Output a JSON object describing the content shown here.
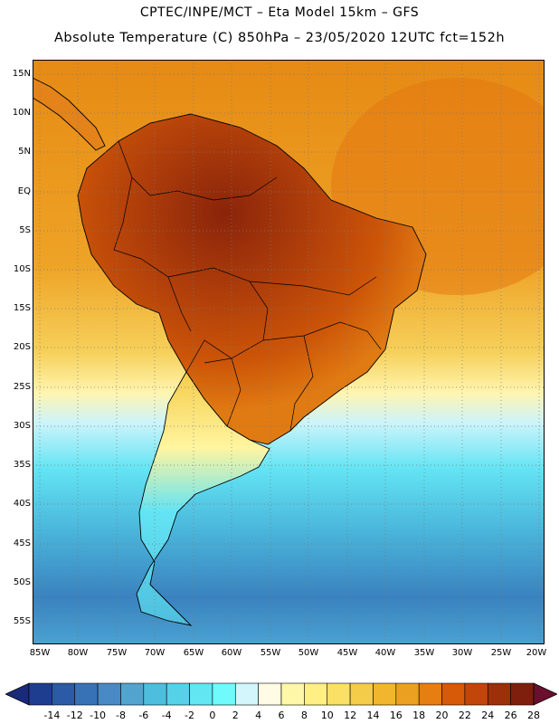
{
  "header": {
    "line1": "CPTEC/INPE/MCT –  Eta Model 15km – GFS",
    "line2": "Absolute Temperature (C) 850hPa – 23/05/2020 12UTC fct=152h"
  },
  "axes": {
    "lat_labels": [
      "15N",
      "10N",
      "5N",
      "EQ",
      "5S",
      "10S",
      "15S",
      "20S",
      "25S",
      "30S",
      "35S",
      "40S",
      "45S",
      "50S",
      "55S"
    ],
    "lon_labels": [
      "85W",
      "80W",
      "75W",
      "70W",
      "65W",
      "60W",
      "55W",
      "50W",
      "45W",
      "40W",
      "35W",
      "30W",
      "25W",
      "20W"
    ]
  },
  "legend": {
    "labels": [
      "-14",
      "-12",
      "-10",
      "-8",
      "-6",
      "-4",
      "-2",
      "0",
      "2",
      "4",
      "6",
      "8",
      "10",
      "12",
      "14",
      "16",
      "18",
      "20",
      "22",
      "24",
      "26",
      "28"
    ],
    "colors": [
      "#1f3d8f",
      "#2c5aa6",
      "#3872b6",
      "#4a8ac4",
      "#52a4cf",
      "#4fbede",
      "#55d2e8",
      "#62e6f2",
      "#70fafc",
      "#d2f6fb",
      "#fffbe4",
      "#fff7a8",
      "#ffef84",
      "#fbe066",
      "#f5cc4a",
      "#f1b62e",
      "#eba022",
      "#e67e12",
      "#d65a08",
      "#c2460a",
      "#9c3008",
      "#7e1e0c"
    ],
    "under_color": "#1a2a78",
    "over_color": "#6a0f2e"
  },
  "map": {
    "ocean_gradient": [
      "#2d5fa3",
      "#3f86c0",
      "#4ec0e0",
      "#67e9f6",
      "#fff7a8",
      "#f1b62e",
      "#e67e12"
    ],
    "land_gradient": [
      "#46a0d0",
      "#57d6ec",
      "#fff5a0",
      "#f1b62e",
      "#d65a08",
      "#9c3008",
      "#7e1e0c"
    ]
  }
}
